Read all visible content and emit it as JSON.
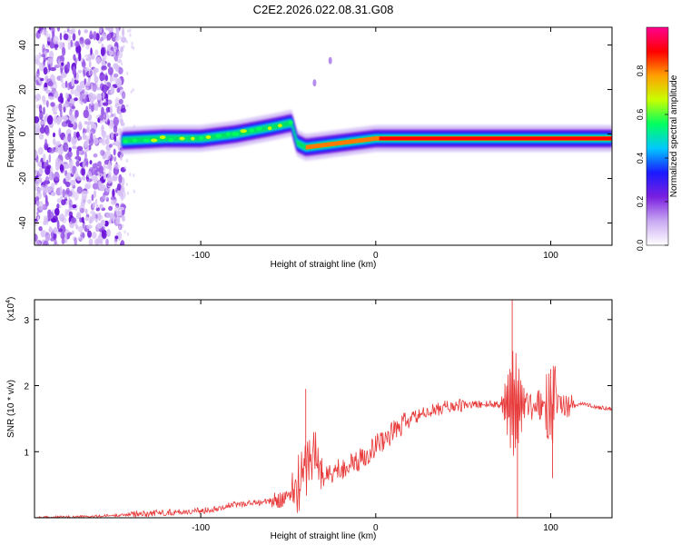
{
  "title": "C2E2.2026.022.08.31.G08",
  "colors": {
    "line": "#e83a3a",
    "axis": "#000000",
    "background": "#ffffff"
  },
  "chart_data": [
    {
      "type": "heatmap",
      "xlabel": "Height of straight line (km)",
      "ylabel": "Frequency (Hz)",
      "xlim": [
        -195,
        135
      ],
      "ylim": [
        -50,
        48
      ],
      "xticks": [
        -100,
        0,
        100
      ],
      "xtick_labels": [
        "-100",
        "0",
        "100"
      ],
      "yticks": [
        -40,
        -20,
        0,
        20,
        40
      ],
      "ytick_labels": [
        "-40",
        "-20",
        "0",
        "20",
        "40"
      ],
      "noise_region_x": [
        -195,
        -148
      ],
      "ridge": {
        "x": [
          -145,
          -120,
          -100,
          -80,
          -60,
          -48,
          -45,
          -40,
          -30,
          -20,
          -10,
          0,
          40,
          80,
          100,
          135
        ],
        "freq": [
          -3,
          -2,
          -2,
          0,
          3,
          5,
          -4,
          -6,
          -5,
          -4,
          -3,
          -2,
          -2,
          -2,
          -2,
          -2
        ]
      },
      "spur_points": [
        {
          "x": -35,
          "freq": 23
        },
        {
          "x": -26,
          "freq": 33
        }
      ],
      "colorbar": {
        "label": "Normalized spectral amplitude",
        "range": [
          0,
          1
        ],
        "ticks": [
          0.0,
          0.2,
          0.4,
          0.6,
          0.8
        ],
        "tick_labels": [
          "0.0",
          "0.2",
          "0.4",
          "0.6",
          "0.8"
        ],
        "colors": [
          "#ffffff",
          "#c9a9f2",
          "#7a1fe0",
          "#1a1aff",
          "#00c8ff",
          "#00ff60",
          "#c8ff00",
          "#ffa000",
          "#ff0000",
          "#ff0090"
        ]
      }
    },
    {
      "type": "line",
      "xlabel": "Height of straight line (km)",
      "ylabel": "SNR (10 * v/v)",
      "y_multiplier": "(x10",
      "y_multiplier_exp": "4",
      "y_multiplier_close": ")",
      "xlim": [
        -195,
        135
      ],
      "ylim": [
        0,
        3.3
      ],
      "xticks": [
        -100,
        0,
        100
      ],
      "xtick_labels": [
        "-100",
        "0",
        "100"
      ],
      "yticks": [
        1,
        2,
        3
      ],
      "ytick_labels": [
        "1",
        "2",
        "3"
      ],
      "series": [
        {
          "name": "SNR",
          "x": [
            -195,
            -160,
            -140,
            -120,
            -100,
            -80,
            -60,
            -50,
            -42,
            -38,
            -35,
            -30,
            -20,
            -10,
            0,
            10,
            20,
            30,
            40,
            50,
            60,
            70,
            75,
            78,
            80,
            82,
            85,
            90,
            95,
            100,
            105,
            110,
            115,
            120,
            125,
            135
          ],
          "values": [
            0.0,
            0.02,
            0.05,
            0.08,
            0.1,
            0.2,
            0.25,
            0.3,
            0.6,
            0.9,
            1.0,
            0.6,
            0.75,
            0.85,
            1.1,
            1.3,
            1.5,
            1.6,
            1.68,
            1.7,
            1.72,
            1.72,
            1.72,
            1.72,
            1.72,
            1.72,
            1.72,
            1.72,
            1.72,
            1.72,
            1.72,
            1.72,
            1.72,
            1.72,
            1.68,
            1.65
          ]
        }
      ],
      "peaks": [
        {
          "x": -40,
          "value": 1.95
        },
        {
          "x": 78,
          "value": 3.3
        },
        {
          "x": 81,
          "value": 0.0
        },
        {
          "x": 100,
          "value": 2.25
        },
        {
          "x": 101,
          "value": 0.6
        }
      ]
    }
  ]
}
